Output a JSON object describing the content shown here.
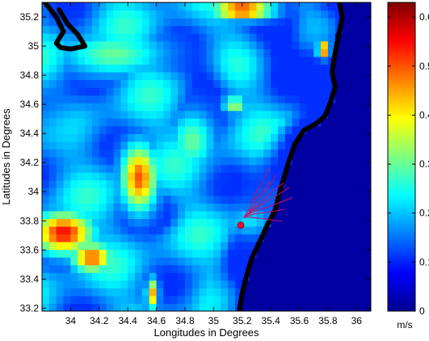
{
  "chart_data": {
    "type": "heatmap",
    "title": "",
    "xlabel": "Longitudes in Degrees",
    "ylabel": "Latitudes in Degrees",
    "xlim": [
      33.8,
      36.1
    ],
    "ylim": [
      33.18,
      35.3
    ],
    "x_ticks": [
      {
        "value": 34.0,
        "label": "34"
      },
      {
        "value": 34.2,
        "label": "34.2"
      },
      {
        "value": 34.4,
        "label": "34.4"
      },
      {
        "value": 34.6,
        "label": "34.6"
      },
      {
        "value": 34.8,
        "label": "34.8"
      },
      {
        "value": 35.0,
        "label": "35"
      },
      {
        "value": 35.2,
        "label": "35.2"
      },
      {
        "value": 35.4,
        "label": "35.4"
      },
      {
        "value": 35.6,
        "label": "35.6"
      },
      {
        "value": 35.8,
        "label": "35.8"
      },
      {
        "value": 36.0,
        "label": "36"
      }
    ],
    "y_ticks": [
      {
        "value": 33.2,
        "label": "33.2"
      },
      {
        "value": 33.4,
        "label": "33.4"
      },
      {
        "value": 33.6,
        "label": "33.6"
      },
      {
        "value": 33.8,
        "label": "33.8"
      },
      {
        "value": 34.0,
        "label": "34"
      },
      {
        "value": 34.2,
        "label": "34.2"
      },
      {
        "value": 34.4,
        "label": "34.4"
      },
      {
        "value": 34.6,
        "label": "34.6"
      },
      {
        "value": 34.8,
        "label": "34.8"
      },
      {
        "value": 35.0,
        "label": "35"
      },
      {
        "value": 35.2,
        "label": "35.2"
      }
    ],
    "colorbar": {
      "colormap": "jet",
      "range": [
        0,
        0.63
      ],
      "unit_label": "m/s",
      "ticks": [
        {
          "value": 0,
          "label": "0"
        },
        {
          "value": 0.1,
          "label": "0.1"
        },
        {
          "value": 0.2,
          "label": "0.2"
        },
        {
          "value": 0.3,
          "label": "0.3"
        },
        {
          "value": 0.4,
          "label": "0.4"
        },
        {
          "value": 0.5,
          "label": "0.5"
        },
        {
          "value": 0.6,
          "label": "0.6"
        }
      ]
    },
    "field": {
      "description_hotspots": [
        {
          "lon": 34.48,
          "lat": 34.1,
          "value": 0.5,
          "rx": 0.12,
          "ry": 0.22
        },
        {
          "lon": 33.95,
          "lat": 33.72,
          "value": 0.55,
          "rx": 0.2,
          "ry": 0.14
        },
        {
          "lon": 34.15,
          "lat": 33.55,
          "value": 0.5,
          "rx": 0.14,
          "ry": 0.1
        },
        {
          "lon": 34.57,
          "lat": 33.3,
          "value": 0.45,
          "rx": 0.04,
          "ry": 0.1
        },
        {
          "lon": 35.2,
          "lat": 35.25,
          "value": 0.55,
          "rx": 0.2,
          "ry": 0.06
        },
        {
          "lon": 35.77,
          "lat": 34.98,
          "value": 0.55,
          "rx": 0.04,
          "ry": 0.05
        },
        {
          "lon": 35.15,
          "lat": 34.6,
          "value": 0.35,
          "rx": 0.08,
          "ry": 0.06
        },
        {
          "lon": 34.3,
          "lat": 34.95,
          "value": 0.3,
          "rx": 0.35,
          "ry": 0.15
        },
        {
          "lon": 34.85,
          "lat": 34.35,
          "value": 0.3,
          "rx": 0.15,
          "ry": 0.2
        },
        {
          "lon": 35.25,
          "lat": 33.8,
          "value": 0.22,
          "rx": 0.15,
          "ry": 0.1
        }
      ],
      "background_value": 0.18,
      "sea_offshore_value": 0.03
    },
    "coastline": [
      [
        33.82,
        35.3
      ],
      [
        33.9,
        35.2
      ],
      [
        33.95,
        35.1
      ],
      [
        33.9,
        35.02
      ],
      [
        33.93,
        34.99
      ],
      [
        34.0,
        34.98
      ],
      [
        34.1,
        35.0
      ],
      [
        34.05,
        35.08
      ],
      [
        33.98,
        35.15
      ],
      [
        33.92,
        35.25
      ]
    ],
    "coast_east": [
      [
        35.88,
        35.3
      ],
      [
        35.9,
        35.2
      ],
      [
        35.88,
        35.1
      ],
      [
        35.86,
        35.0
      ],
      [
        35.84,
        34.9
      ],
      [
        35.83,
        34.82
      ],
      [
        35.85,
        34.72
      ],
      [
        35.82,
        34.62
      ],
      [
        35.78,
        34.52
      ],
      [
        35.72,
        34.47
      ],
      [
        35.63,
        34.42
      ],
      [
        35.57,
        34.33
      ],
      [
        35.53,
        34.22
      ],
      [
        35.5,
        34.12
      ],
      [
        35.47,
        34.02
      ],
      [
        35.45,
        33.95
      ],
      [
        35.43,
        33.87
      ],
      [
        35.38,
        33.78
      ],
      [
        35.33,
        33.67
      ],
      [
        35.27,
        33.55
      ],
      [
        35.23,
        33.42
      ],
      [
        35.2,
        33.3
      ],
      [
        35.18,
        33.18
      ]
    ],
    "trajectories": {
      "start": {
        "lon": 35.19,
        "lat": 33.77
      },
      "lines": [
        [
          [
            35.22,
            33.82
          ],
          [
            35.28,
            33.9
          ],
          [
            35.35,
            33.98
          ],
          [
            35.4,
            34.05
          ],
          [
            35.44,
            34.12
          ]
        ],
        [
          [
            35.22,
            33.83
          ],
          [
            35.3,
            33.9
          ],
          [
            35.37,
            33.96
          ],
          [
            35.43,
            34.02
          ],
          [
            35.49,
            34.06
          ]
        ],
        [
          [
            35.23,
            33.84
          ],
          [
            35.32,
            33.9
          ],
          [
            35.4,
            33.95
          ],
          [
            35.47,
            33.99
          ],
          [
            35.53,
            34.03
          ]
        ],
        [
          [
            35.23,
            33.84
          ],
          [
            35.33,
            33.88
          ],
          [
            35.42,
            33.91
          ],
          [
            35.5,
            33.94
          ],
          [
            35.55,
            33.96
          ]
        ],
        [
          [
            35.22,
            33.83
          ],
          [
            35.3,
            33.85
          ],
          [
            35.38,
            33.86
          ],
          [
            35.45,
            33.87
          ],
          [
            35.5,
            33.88
          ]
        ],
        [
          [
            35.22,
            33.83
          ],
          [
            35.3,
            33.82
          ],
          [
            35.38,
            33.81
          ],
          [
            35.44,
            33.8
          ],
          [
            35.48,
            33.8
          ]
        ],
        [
          [
            35.21,
            33.82
          ],
          [
            35.25,
            33.88
          ],
          [
            35.28,
            33.94
          ],
          [
            35.34,
            34.0
          ],
          [
            35.4,
            34.08
          ]
        ],
        [
          [
            35.21,
            33.82
          ],
          [
            35.26,
            33.9
          ],
          [
            35.3,
            34.0
          ],
          [
            35.35,
            34.08
          ],
          [
            35.39,
            34.16
          ]
        ]
      ]
    }
  }
}
